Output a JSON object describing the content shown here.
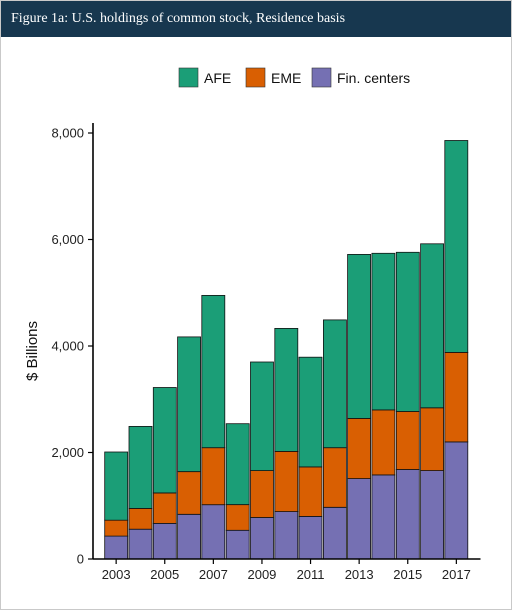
{
  "title": "Figure 1a: U.S. holdings of common stock, Residence basis",
  "chart_data": {
    "type": "bar",
    "stacked": true,
    "categories": [
      "2003",
      "2004",
      "2005",
      "2006",
      "2007",
      "2008",
      "2009",
      "2010",
      "2011",
      "2012",
      "2013",
      "2014",
      "2015",
      "2016",
      "2017"
    ],
    "x_tick_labels": [
      "2003",
      "2005",
      "2007",
      "2009",
      "2011",
      "2013",
      "2015",
      "2017"
    ],
    "ylabel": "$ Billions",
    "ylim": [
      0,
      8000
    ],
    "y_ticks": [
      0,
      2000,
      4000,
      6000,
      8000
    ],
    "y_tick_labels": [
      "0",
      "2,000",
      "4,000",
      "6,000",
      "8,000"
    ],
    "legend_position": "top",
    "series": [
      {
        "name": "Fin. centers",
        "color": "#7570b3",
        "values": [
          430,
          560,
          670,
          840,
          1020,
          540,
          780,
          890,
          800,
          970,
          1510,
          1580,
          1680,
          1660,
          2200
        ]
      },
      {
        "name": "EME",
        "color": "#d95f02",
        "values": [
          300,
          390,
          570,
          800,
          1070,
          480,
          880,
          1130,
          930,
          1120,
          1130,
          1220,
          1090,
          1180,
          1680
        ]
      },
      {
        "name": "AFE",
        "color": "#1b9e77",
        "values": [
          1280,
          1540,
          1980,
          2530,
          2860,
          1520,
          2040,
          2310,
          2060,
          2400,
          3080,
          2940,
          2990,
          3080,
          3980
        ]
      }
    ],
    "legend_order": [
      "AFE",
      "EME",
      "Fin. centers"
    ],
    "grid": false
  }
}
